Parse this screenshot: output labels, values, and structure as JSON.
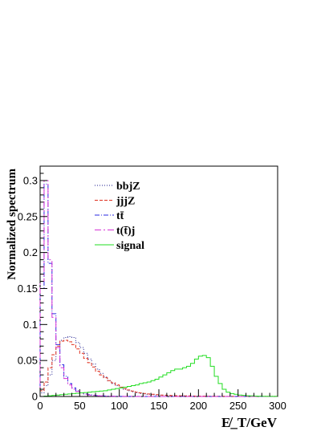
{
  "chart_data": {
    "type": "line",
    "xlabel": "E̸_T/GeV",
    "ylabel": "Normalized spectrum",
    "xlim": [
      0,
      300
    ],
    "ylim": [
      0,
      0.32
    ],
    "x_ticks": [
      "0",
      "50",
      "100",
      "150",
      "200",
      "250",
      "300"
    ],
    "y_ticks": [
      "0",
      "0.05",
      "0.1",
      "0.15",
      "0.2",
      "0.25",
      "0.3"
    ],
    "x_tick_values": [
      0,
      50,
      100,
      150,
      200,
      250,
      300
    ],
    "y_tick_values": [
      0,
      0.05,
      0.1,
      0.15,
      0.2,
      0.25,
      0.3
    ],
    "legend_position": "top-center",
    "bin_edges": [
      0,
      5,
      10,
      15,
      20,
      25,
      30,
      35,
      40,
      45,
      50,
      55,
      60,
      65,
      70,
      75,
      80,
      85,
      90,
      95,
      100,
      105,
      110,
      115,
      120,
      125,
      130,
      135,
      140,
      145,
      150,
      155,
      160,
      165,
      170,
      175,
      180,
      185,
      190,
      195,
      200,
      205,
      210,
      215,
      220,
      225,
      230,
      235,
      240,
      245,
      250,
      255,
      260,
      265,
      270,
      275,
      280,
      285,
      290,
      295,
      300
    ],
    "series": [
      {
        "name": "bbjZ",
        "color": "#1a1a8c",
        "dash": "1,2",
        "values": [
          0.005,
          0.015,
          0.03,
          0.05,
          0.068,
          0.078,
          0.082,
          0.083,
          0.082,
          0.075,
          0.068,
          0.06,
          0.052,
          0.045,
          0.038,
          0.032,
          0.027,
          0.022,
          0.018,
          0.015,
          0.012,
          0.01,
          0.008,
          0.0065,
          0.005,
          0.004,
          0.0035,
          0.003,
          0.0025,
          0.002,
          0.0018,
          0.0015,
          0.0012,
          0.001,
          0.0009,
          0.0008,
          0.0007,
          0.0006,
          0.0005,
          0.0005,
          0.0004,
          0.0004,
          0.0003,
          0.0003,
          0.0003,
          0.0002,
          0.0002,
          0.0002,
          0.0002,
          0.0001,
          0.0001,
          0.0001,
          0.0001,
          0.0001,
          0.0001,
          0.0001,
          0.0001,
          0.0001,
          0.0001,
          0.0001
        ]
      },
      {
        "name": "jjjZ",
        "color": "#e0301e",
        "dash": "4,2",
        "values": [
          0.008,
          0.02,
          0.04,
          0.058,
          0.07,
          0.077,
          0.078,
          0.076,
          0.072,
          0.066,
          0.06,
          0.053,
          0.047,
          0.041,
          0.035,
          0.03,
          0.026,
          0.022,
          0.019,
          0.016,
          0.013,
          0.011,
          0.009,
          0.0075,
          0.006,
          0.005,
          0.0042,
          0.0035,
          0.003,
          0.0025,
          0.002,
          0.0018,
          0.0015,
          0.0013,
          0.0011,
          0.001,
          0.0009,
          0.0008,
          0.0007,
          0.0006,
          0.0005,
          0.0005,
          0.0004,
          0.0004,
          0.0003,
          0.0003,
          0.0003,
          0.0002,
          0.0002,
          0.0002,
          0.0002,
          0.0001,
          0.0001,
          0.0001,
          0.0001,
          0.0001,
          0.0001,
          0.0001,
          0.0001,
          0.0001
        ]
      },
      {
        "name": "tt̄",
        "color": "#2a2ae0",
        "dash": "6,2,1,2",
        "values": [
          0.15,
          0.295,
          0.185,
          0.115,
          0.072,
          0.044,
          0.028,
          0.018,
          0.012,
          0.008,
          0.005,
          0.0035,
          0.0025,
          0.0018,
          0.0012,
          0.0009,
          0.0007,
          0.0005,
          0.0004,
          0.0003,
          0.0002,
          0.0002,
          0.0001,
          0.0001,
          0.0001,
          0,
          0,
          0,
          0,
          0,
          0,
          0,
          0,
          0,
          0,
          0,
          0,
          0,
          0,
          0,
          0,
          0,
          0,
          0,
          0,
          0,
          0,
          0,
          0,
          0,
          0,
          0,
          0,
          0,
          0,
          0,
          0,
          0,
          0,
          0
        ]
      },
      {
        "name": "t(t̄)j",
        "color": "#d633d6",
        "dash": "8,3,2,3",
        "values": [
          0.16,
          0.3,
          0.19,
          0.11,
          0.068,
          0.04,
          0.025,
          0.016,
          0.01,
          0.007,
          0.0045,
          0.003,
          0.002,
          0.0015,
          0.001,
          0.0008,
          0.0006,
          0.0004,
          0.0003,
          0.0002,
          0.0002,
          0.0001,
          0.0001,
          0.0001,
          0,
          0,
          0,
          0,
          0,
          0,
          0,
          0,
          0,
          0,
          0,
          0,
          0,
          0,
          0,
          0,
          0,
          0,
          0,
          0,
          0,
          0,
          0,
          0,
          0,
          0,
          0,
          0,
          0,
          0,
          0,
          0,
          0,
          0,
          0,
          0
        ]
      },
      {
        "name": "signal",
        "color": "#22dd22",
        "dash": "",
        "values": [
          0,
          0.0005,
          0.001,
          0.0015,
          0.002,
          0.0025,
          0.003,
          0.0035,
          0.004,
          0.0045,
          0.005,
          0.0055,
          0.006,
          0.0065,
          0.007,
          0.0075,
          0.008,
          0.009,
          0.01,
          0.011,
          0.012,
          0.013,
          0.014,
          0.015,
          0.016,
          0.018,
          0.019,
          0.02,
          0.022,
          0.024,
          0.027,
          0.03,
          0.033,
          0.036,
          0.038,
          0.038,
          0.04,
          0.042,
          0.046,
          0.052,
          0.056,
          0.057,
          0.054,
          0.042,
          0.028,
          0.018,
          0.01,
          0.006,
          0.004,
          0.003,
          0.002,
          0.0015,
          0.001,
          0.0008,
          0.0006,
          0.0004,
          0.0003,
          0.0002,
          0.0001,
          0.0001
        ]
      }
    ]
  }
}
